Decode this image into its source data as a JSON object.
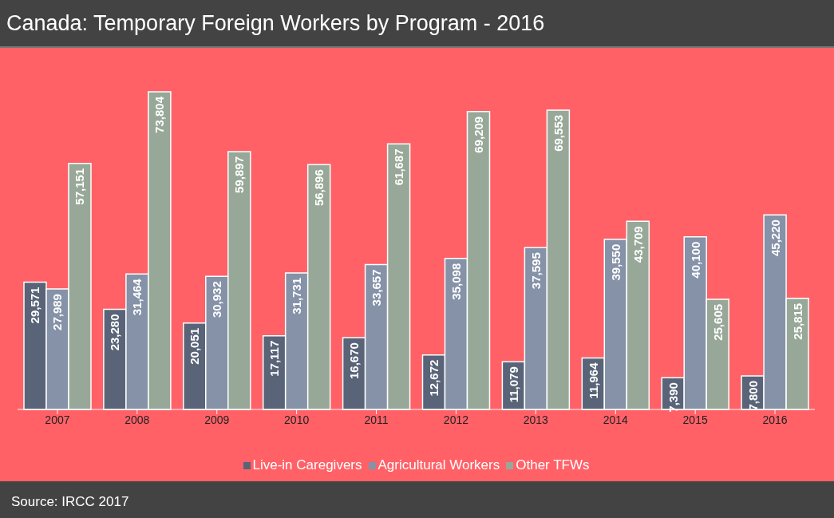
{
  "chart_data": {
    "type": "bar",
    "title": "Canada: Temporary Foreign Workers by Program - 2016",
    "categories": [
      "2007",
      "2008",
      "2009",
      "2010",
      "2011",
      "2012",
      "2013",
      "2014",
      "2015",
      "2016"
    ],
    "series": [
      {
        "name": "Live-in Caregivers",
        "color": "#5a6478",
        "values": [
          29571,
          23280,
          20051,
          17117,
          16670,
          12672,
          11079,
          11964,
          7390,
          7800
        ],
        "value_labels": [
          "29,571",
          "23,280",
          "20,051",
          "17,117",
          "16,670",
          "12,672",
          "11,079",
          "11,964",
          "7,390",
          "7,800"
        ]
      },
      {
        "name": "Agricultural Workers",
        "color": "#8592a8",
        "values": [
          27989,
          31464,
          30932,
          31731,
          33657,
          35098,
          37595,
          39550,
          40100,
          45220
        ],
        "value_labels": [
          "27,989",
          "31,464",
          "30,932",
          "31,731",
          "33,657",
          "35,098",
          "37,595",
          "39,550",
          "40,100",
          "45,220"
        ]
      },
      {
        "name": "Other TFWs",
        "color": "#98a898",
        "values": [
          57151,
          73804,
          59897,
          56896,
          61687,
          69209,
          69553,
          43709,
          25605,
          25815
        ],
        "value_labels": [
          "57,151",
          "73,804",
          "59,897",
          "56,896",
          "61,687",
          "69,209",
          "69,553",
          "43,709",
          "25,605",
          "25,815"
        ]
      }
    ],
    "legend": "bottom",
    "grid": false,
    "annotations": [
      "Source: IRCC 2017"
    ]
  }
}
